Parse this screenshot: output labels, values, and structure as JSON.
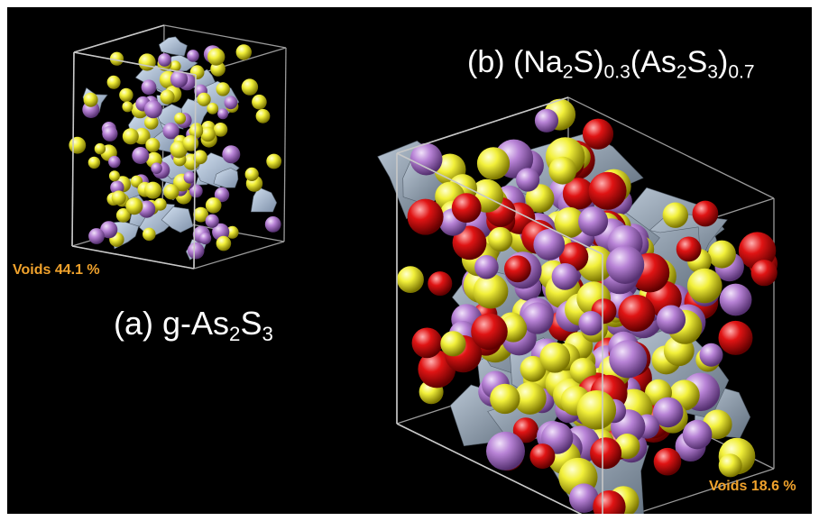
{
  "panel_a": {
    "label_prefix": "(a) g-As",
    "label_sub1": "2",
    "label_mid": "S",
    "label_sub2": "3",
    "voids_label": "Voids 44.1 %"
  },
  "panel_b": {
    "label_open1": "(b) (Na",
    "label_sub1": "2",
    "label_s": "S)",
    "label_sub2": "0.3",
    "label_open2": "(As",
    "label_sub3": "2",
    "label_s2": "S",
    "label_sub4": "3",
    "label_close": ")",
    "label_sub5": "0.7",
    "voids_label": "Voids 18.6 %"
  },
  "colors": {
    "background": "#000000",
    "sulfur": "#f2f03a",
    "arsenic": "#b883d6",
    "sodium": "#e01414",
    "void_surface": "#a9bbd2",
    "cube_edges": "#bdbdbd",
    "voids_text": "#f0a22c"
  }
}
